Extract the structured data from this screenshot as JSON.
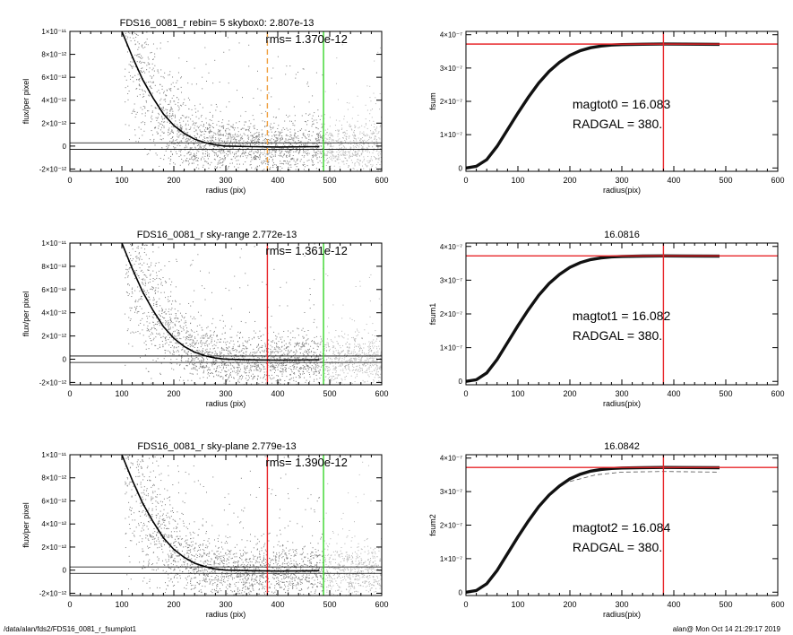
{
  "footer": {
    "path": "/data/alan/fds2/FDS16_0081_r_fsumplot1",
    "stamp": "alan@  Mon Oct 14 21:29:17 2019"
  },
  "colors": {
    "red": "#e8262a",
    "green": "#39d62a",
    "orange": "#f0a040",
    "scatter": "#7a7a7a",
    "scatter_outer": "#b4b4b4"
  },
  "chart_data": [
    {
      "type": "scatter",
      "title": "FDS16_0081_r rebin= 5    skybox0:  2.807e-13",
      "annotation": "rms= 1.370e-12",
      "xlabel": "radius (pix)",
      "ylabel": "flux/per pixel",
      "xlim": [
        0,
        600
      ],
      "ylim": [
        -2.2e-12,
        1e-11
      ],
      "xticks": [
        "0",
        "100",
        "200",
        "300",
        "400",
        "500",
        "600"
      ],
      "yticks": [
        "-2×10⁻¹²",
        "0",
        "2×10⁻¹²",
        "4×10⁻¹²",
        "6×10⁻¹²",
        "8×10⁻¹²",
        "1×10⁻¹¹"
      ],
      "ytick_values": [
        -2e-12,
        0,
        2e-12,
        4e-12,
        6e-12,
        8e-12,
        1e-11
      ],
      "vlines": [
        {
          "x": 380,
          "color": "orange",
          "style": "dashed"
        },
        {
          "x": 488,
          "color": "green"
        }
      ],
      "hlines": [
        2.807e-13,
        -2.807e-13
      ],
      "profile": [
        [
          100,
          1e-11
        ],
        [
          120,
          7.8e-12
        ],
        [
          140,
          5.8e-12
        ],
        [
          160,
          4.2e-12
        ],
        [
          180,
          2.8e-12
        ],
        [
          200,
          1.8e-12
        ],
        [
          220,
          1.1e-12
        ],
        [
          240,
          6e-13
        ],
        [
          260,
          3e-13
        ],
        [
          280,
          1e-13
        ],
        [
          300,
          0
        ],
        [
          350,
          -5e-14
        ],
        [
          400,
          -8e-14
        ],
        [
          480,
          -5e-14
        ]
      ]
    },
    {
      "type": "line",
      "title": "",
      "annotation_lines": [
        "magtot0 =  16.083",
        "RADGAL =    380."
      ],
      "xlabel": "radius(pix)",
      "ylabel": "fsum",
      "xlim": [
        0,
        600
      ],
      "ylim": [
        -1e-08,
        4.1e-07
      ],
      "xticks": [
        "0",
        "100",
        "200",
        "300",
        "400",
        "500",
        "600"
      ],
      "yticks": [
        "0",
        "1×10⁻⁷",
        "2×10⁻⁷",
        "3×10⁻⁷",
        "4×10⁻⁷"
      ],
      "ytick_values": [
        0,
        1e-07,
        2e-07,
        3e-07,
        4e-07
      ],
      "vline": 380,
      "hline": 3.72e-07,
      "curve": [
        [
          0,
          0
        ],
        [
          20,
          5e-09
        ],
        [
          40,
          2.5e-08
        ],
        [
          60,
          6.5e-08
        ],
        [
          80,
          1.15e-07
        ],
        [
          100,
          1.65e-07
        ],
        [
          120,
          2.12e-07
        ],
        [
          140,
          2.55e-07
        ],
        [
          160,
          2.9e-07
        ],
        [
          180,
          3.17e-07
        ],
        [
          200,
          3.38e-07
        ],
        [
          220,
          3.52e-07
        ],
        [
          240,
          3.61e-07
        ],
        [
          260,
          3.66e-07
        ],
        [
          280,
          3.69e-07
        ],
        [
          300,
          3.705e-07
        ],
        [
          340,
          3.715e-07
        ],
        [
          380,
          3.72e-07
        ],
        [
          420,
          3.718e-07
        ],
        [
          488,
          3.712e-07
        ]
      ]
    },
    {
      "type": "scatter",
      "title": "FDS16_0081_r sky-range  2.772e-13",
      "annotation": "rms= 1.361e-12",
      "xlabel": "radius (pix)",
      "ylabel": "flux/per pixel",
      "xlim": [
        0,
        600
      ],
      "ylim": [
        -2.2e-12,
        1e-11
      ],
      "xticks": [
        "0",
        "100",
        "200",
        "300",
        "400",
        "500",
        "600"
      ],
      "yticks": [
        "-2×10⁻¹²",
        "0",
        "2×10⁻¹²",
        "4×10⁻¹²",
        "6×10⁻¹²",
        "8×10⁻¹²",
        "1×10⁻¹¹"
      ],
      "ytick_values": [
        -2e-12,
        0,
        2e-12,
        4e-12,
        6e-12,
        8e-12,
        1e-11
      ],
      "vlines": [
        {
          "x": 380,
          "color": "red"
        },
        {
          "x": 488,
          "color": "green"
        }
      ],
      "hlines": [
        2.772e-13,
        -2.772e-13
      ],
      "profile": [
        [
          100,
          1e-11
        ],
        [
          120,
          7.8e-12
        ],
        [
          140,
          5.8e-12
        ],
        [
          160,
          4.2e-12
        ],
        [
          180,
          2.8e-12
        ],
        [
          200,
          1.8e-12
        ],
        [
          220,
          1.1e-12
        ],
        [
          240,
          6e-13
        ],
        [
          260,
          3e-13
        ],
        [
          280,
          1e-13
        ],
        [
          300,
          0
        ],
        [
          350,
          -5e-14
        ],
        [
          400,
          -8e-14
        ],
        [
          480,
          -5e-14
        ]
      ]
    },
    {
      "type": "line",
      "title": "16.0816",
      "annotation_lines": [
        "magtot1 =  16.082",
        "RADGAL =    380."
      ],
      "xlabel": "radius(pix)",
      "ylabel": "fsum1",
      "xlim": [
        0,
        600
      ],
      "ylim": [
        -1e-08,
        4.1e-07
      ],
      "xticks": [
        "0",
        "100",
        "200",
        "300",
        "400",
        "500",
        "600"
      ],
      "yticks": [
        "0",
        "1×10⁻⁷",
        "2×10⁻⁷",
        "3×10⁻⁷",
        "4×10⁻⁷"
      ],
      "ytick_values": [
        0,
        1e-07,
        2e-07,
        3e-07,
        4e-07
      ],
      "vline": 380,
      "hline": 3.72e-07,
      "curve": [
        [
          0,
          0
        ],
        [
          20,
          5e-09
        ],
        [
          40,
          2.5e-08
        ],
        [
          60,
          6.5e-08
        ],
        [
          80,
          1.15e-07
        ],
        [
          100,
          1.65e-07
        ],
        [
          120,
          2.12e-07
        ],
        [
          140,
          2.55e-07
        ],
        [
          160,
          2.9e-07
        ],
        [
          180,
          3.17e-07
        ],
        [
          200,
          3.38e-07
        ],
        [
          220,
          3.52e-07
        ],
        [
          240,
          3.61e-07
        ],
        [
          260,
          3.66e-07
        ],
        [
          280,
          3.69e-07
        ],
        [
          300,
          3.705e-07
        ],
        [
          340,
          3.715e-07
        ],
        [
          380,
          3.72e-07
        ],
        [
          420,
          3.718e-07
        ],
        [
          488,
          3.712e-07
        ]
      ]
    },
    {
      "type": "scatter",
      "title": "FDS16_0081_r sky-plane  2.779e-13",
      "annotation": "rms= 1.390e-12",
      "xlabel": "radius (pix)",
      "ylabel": "flux/per pixel",
      "xlim": [
        0,
        600
      ],
      "ylim": [
        -2.2e-12,
        1e-11
      ],
      "xticks": [
        "0",
        "100",
        "200",
        "300",
        "400",
        "500",
        "600"
      ],
      "yticks": [
        "-2×10⁻¹²",
        "0",
        "2×10⁻¹²",
        "4×10⁻¹²",
        "6×10⁻¹²",
        "8×10⁻¹²",
        "1×10⁻¹¹"
      ],
      "ytick_values": [
        -2e-12,
        0,
        2e-12,
        4e-12,
        6e-12,
        8e-12,
        1e-11
      ],
      "vlines": [
        {
          "x": 380,
          "color": "red"
        },
        {
          "x": 488,
          "color": "green"
        }
      ],
      "hlines": [
        2.779e-13,
        -2.779e-13
      ],
      "profile": [
        [
          100,
          1e-11
        ],
        [
          120,
          7.8e-12
        ],
        [
          140,
          5.8e-12
        ],
        [
          160,
          4.2e-12
        ],
        [
          180,
          2.8e-12
        ],
        [
          200,
          1.8e-12
        ],
        [
          220,
          1.1e-12
        ],
        [
          240,
          6e-13
        ],
        [
          260,
          3e-13
        ],
        [
          280,
          1e-13
        ],
        [
          300,
          0
        ],
        [
          350,
          -5e-14
        ],
        [
          400,
          -8e-14
        ],
        [
          480,
          -5e-14
        ]
      ]
    },
    {
      "type": "line",
      "title": "16.0842",
      "annotation_lines": [
        "magtot2 =  16.084",
        "RADGAL =    380."
      ],
      "xlabel": "radius(pix)",
      "ylabel": "fsum2",
      "xlim": [
        0,
        600
      ],
      "ylim": [
        -1e-08,
        4.1e-07
      ],
      "xticks": [
        "0",
        "100",
        "200",
        "300",
        "400",
        "500",
        "600"
      ],
      "yticks": [
        "0",
        "1×10⁻⁷",
        "2×10⁻⁷",
        "3×10⁻⁷",
        "4×10⁻⁷"
      ],
      "ytick_values": [
        0,
        1e-07,
        2e-07,
        3e-07,
        4e-07
      ],
      "vline": 380,
      "hline": 3.72e-07,
      "dashed_curve": [
        [
          200,
          3.3e-07
        ],
        [
          250,
          3.5e-07
        ],
        [
          300,
          3.58e-07
        ],
        [
          380,
          3.6e-07
        ],
        [
          488,
          3.58e-07
        ]
      ],
      "curve": [
        [
          0,
          0
        ],
        [
          20,
          5e-09
        ],
        [
          40,
          2.5e-08
        ],
        [
          60,
          6.5e-08
        ],
        [
          80,
          1.15e-07
        ],
        [
          100,
          1.65e-07
        ],
        [
          120,
          2.12e-07
        ],
        [
          140,
          2.55e-07
        ],
        [
          160,
          2.9e-07
        ],
        [
          180,
          3.17e-07
        ],
        [
          200,
          3.38e-07
        ],
        [
          220,
          3.52e-07
        ],
        [
          240,
          3.61e-07
        ],
        [
          260,
          3.66e-07
        ],
        [
          280,
          3.69e-07
        ],
        [
          300,
          3.705e-07
        ],
        [
          340,
          3.715e-07
        ],
        [
          380,
          3.72e-07
        ],
        [
          420,
          3.718e-07
        ],
        [
          488,
          3.712e-07
        ]
      ]
    }
  ]
}
